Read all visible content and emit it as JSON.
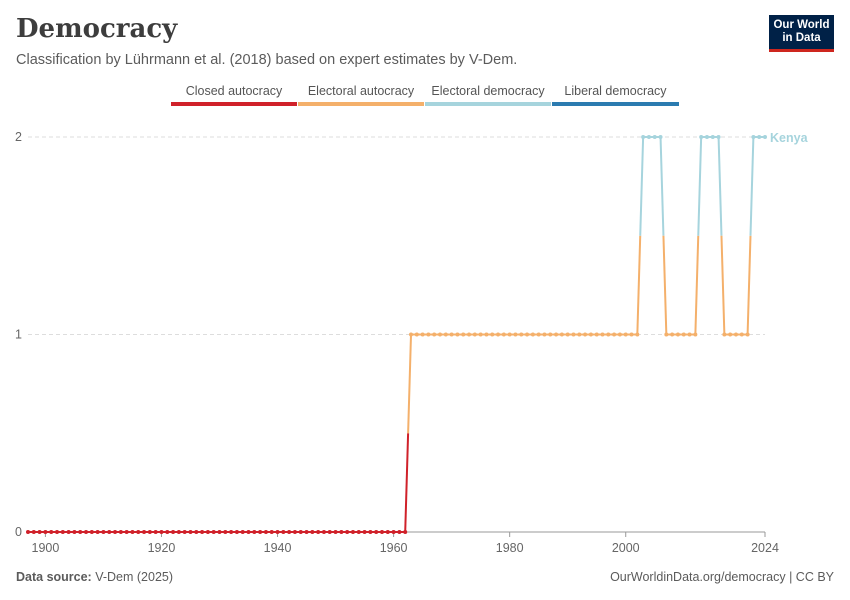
{
  "header": {
    "title": "Democracy",
    "subtitle": "Classification by Lührmann et al. (2018) based on expert estimates by V-Dem."
  },
  "logo": {
    "line1": "Our World",
    "line2": "in Data"
  },
  "legend": [
    {
      "label": "Closed autocracy",
      "color": "#d0212a"
    },
    {
      "label": "Electoral autocracy",
      "color": "#f4b06b"
    },
    {
      "label": "Electoral democracy",
      "color": "#a6d4dd"
    },
    {
      "label": "Liberal democracy",
      "color": "#2b7bb0"
    }
  ],
  "footer": {
    "source_label": "Data source:",
    "source_value": "V-Dem (2025)",
    "right": "OurWorldinData.org/democracy | CC BY"
  },
  "chart_data": {
    "type": "line",
    "title": "Democracy",
    "xlim": [
      1897,
      2024
    ],
    "ylim": [
      0,
      2
    ],
    "x_ticks": [
      1900,
      1920,
      1940,
      1960,
      1980,
      2000,
      2024
    ],
    "y_ticks": [
      0,
      1,
      2
    ],
    "grid": "horizontal dashed",
    "series": [
      {
        "name": "Kenya",
        "segments": [
          {
            "from": 1897,
            "to": 1962,
            "value": 0
          },
          {
            "from": 1963,
            "to": 2002,
            "value": 1
          },
          {
            "from": 2003,
            "to": 2006,
            "value": 2
          },
          {
            "from": 2007,
            "to": 2012,
            "value": 1
          },
          {
            "from": 2013,
            "to": 2016,
            "value": 2
          },
          {
            "from": 2017,
            "to": 2021,
            "value": 1
          },
          {
            "from": 2022,
            "to": 2024,
            "value": 2
          }
        ]
      }
    ],
    "category_colors": {
      "0": "#d0212a",
      "1": "#f4b06b",
      "2": "#a6d4dd",
      "3": "#2b7bb0"
    },
    "end_label": "Kenya"
  }
}
